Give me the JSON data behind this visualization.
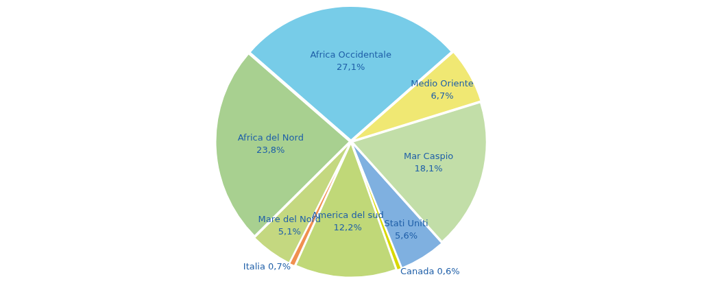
{
  "chart_data": {
    "type": "pie",
    "categories": [
      "Africa Occidentale",
      "Medio Oriente",
      "Mar Caspio",
      "Stati Uniti",
      "Canada",
      "America del sud",
      "Italia",
      "Mare del Nord",
      "Africa del Nord"
    ],
    "values": [
      27.1,
      6.7,
      18.1,
      5.6,
      0.6,
      12.2,
      0.7,
      5.1,
      23.8
    ],
    "colors": [
      "#77cce8",
      "#f0e873",
      "#c2dea8",
      "#7fb0e0",
      "#d8d800",
      "#c0d878",
      "#f09050",
      "#c4d880",
      "#a8d090"
    ],
    "value_labels": [
      "27,1%",
      "6,7%",
      "18,1%",
      "5,6%",
      "0,6%",
      "12,2%",
      "0,7%",
      "5,1%",
      "23,8%"
    ],
    "legend": false
  }
}
